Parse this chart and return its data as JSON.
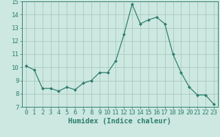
{
  "x": [
    0,
    1,
    2,
    3,
    4,
    5,
    6,
    7,
    8,
    9,
    10,
    11,
    12,
    13,
    14,
    15,
    16,
    17,
    18,
    19,
    20,
    21,
    22,
    23
  ],
  "y": [
    10.1,
    9.8,
    8.4,
    8.4,
    8.2,
    8.5,
    8.3,
    8.8,
    9.0,
    9.6,
    9.6,
    10.5,
    12.5,
    14.8,
    13.3,
    13.6,
    13.8,
    13.3,
    11.0,
    9.6,
    8.5,
    7.9,
    7.9,
    7.2
  ],
  "line_color": "#2e7d6e",
  "marker": "D",
  "marker_size": 2.0,
  "bg_color": "#cce8e0",
  "grid_color": "#aac8be",
  "xlabel": "Humidex (Indice chaleur)",
  "xlabel_fontsize": 7.5,
  "tick_fontsize": 6.5,
  "ylim": [
    7,
    15
  ],
  "xlim": [
    -0.5,
    23.5
  ],
  "yticks": [
    7,
    8,
    9,
    10,
    11,
    12,
    13,
    14,
    15
  ],
  "xticks": [
    0,
    1,
    2,
    3,
    4,
    5,
    6,
    7,
    8,
    9,
    10,
    11,
    12,
    13,
    14,
    15,
    16,
    17,
    18,
    19,
    20,
    21,
    22,
    23
  ]
}
